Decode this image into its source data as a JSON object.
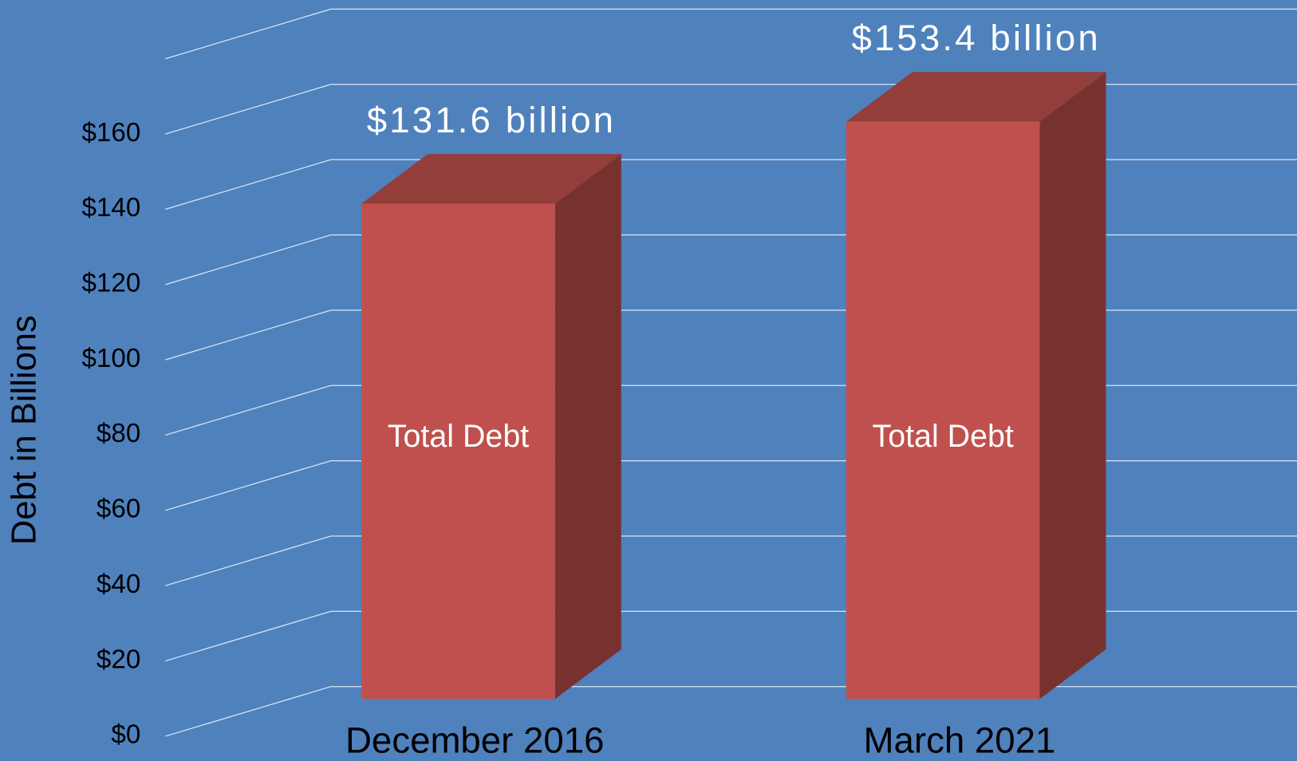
{
  "chart_data": {
    "type": "bar3d",
    "y_axis_label": "Debt in Billions",
    "categories": [
      "December 2016",
      "March 2021"
    ],
    "series": [
      {
        "name": "Total Debt",
        "color": "#c0504d",
        "values": [
          131.6,
          153.4
        ],
        "value_labels": [
          "$131.6 billion",
          "$153.4 billion"
        ]
      }
    ],
    "ylim": [
      0,
      180
    ],
    "yticks": [
      {
        "value": 0,
        "label": "$0"
      },
      {
        "value": 20,
        "label": "$20"
      },
      {
        "value": 40,
        "label": "$40"
      },
      {
        "value": 60,
        "label": "$60"
      },
      {
        "value": 80,
        "label": "$80"
      },
      {
        "value": 100,
        "label": "$100"
      },
      {
        "value": 120,
        "label": "$120"
      },
      {
        "value": 140,
        "label": "$140"
      },
      {
        "value": 160,
        "label": "$160"
      }
    ],
    "grid": true
  }
}
